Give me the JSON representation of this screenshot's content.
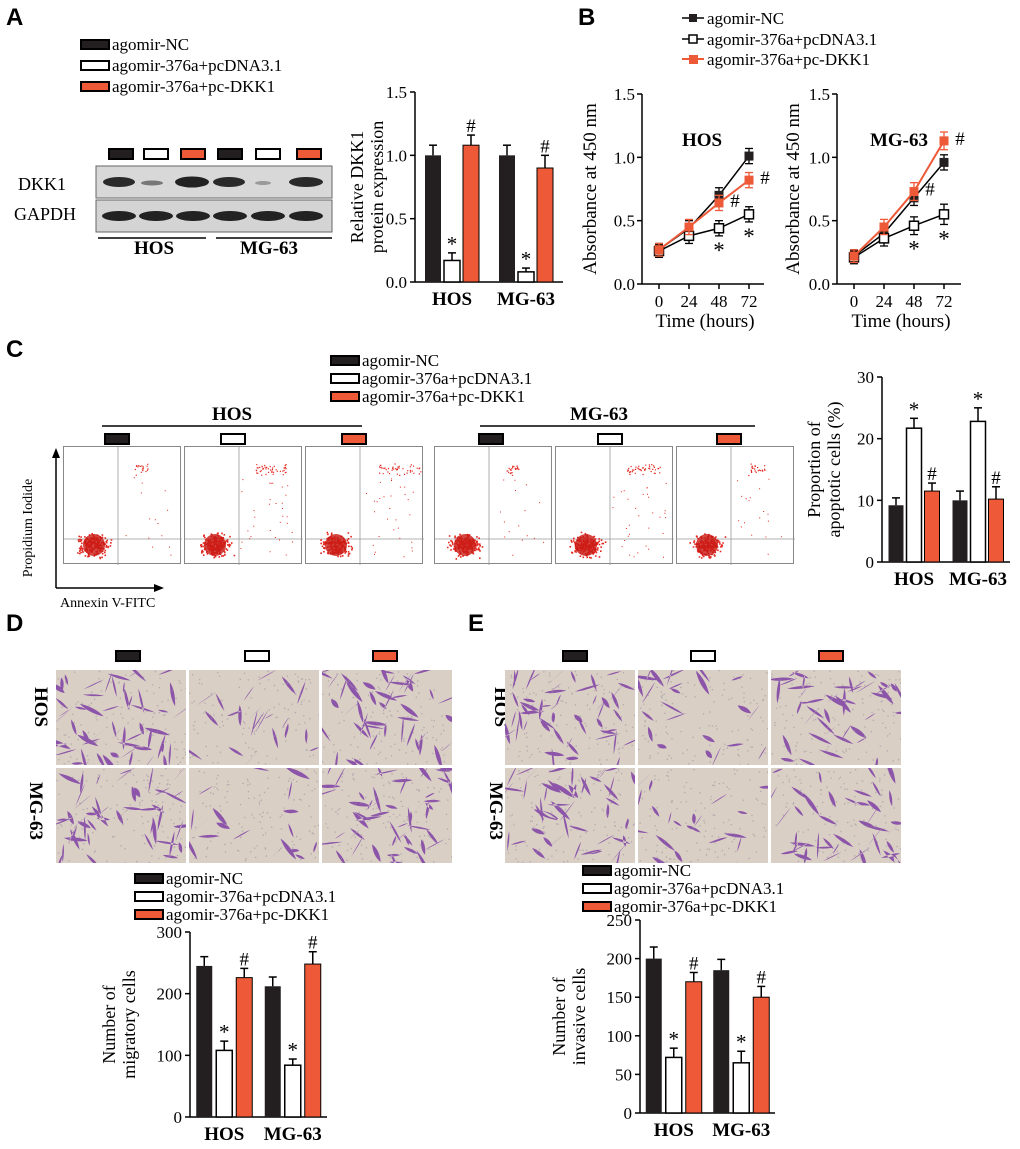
{
  "colors": {
    "nc": "#231f20",
    "pcdna": "#ffffff",
    "dkk1": "#ee5a38"
  },
  "panels": {
    "a": "A",
    "b": "B",
    "c": "C",
    "d": "D",
    "e": "E"
  },
  "legend": {
    "nc": "agomir-NC",
    "pcdna": "agomir-376a+pcDNA3.1",
    "dkk": "agomir-376a+pc-DKK1"
  },
  "lines": {
    "hos": "HOS",
    "mg63": "MG-63"
  },
  "western": {
    "dkk1": "DKK1",
    "gapdh": "GAPDH"
  },
  "flow": {
    "ylabel": "Propidium Iodide",
    "xlabel": "Annexin V-FITC"
  },
  "chart_data": [
    {
      "id": "A-bar",
      "type": "bar",
      "ylabel": "Relative DKK1 protein expression",
      "ylim": [
        0,
        1.5
      ],
      "yticks": [
        "0.0",
        "0.5",
        "1.0",
        "1.5"
      ],
      "categories": [
        "HOS",
        "MG-63"
      ],
      "series": [
        {
          "name": "agomir-NC",
          "values": [
            1.0,
            1.0
          ],
          "err": [
            0.08,
            0.08
          ]
        },
        {
          "name": "agomir-376a+pcDNA3.1",
          "values": [
            0.17,
            0.08
          ],
          "err": [
            0.06,
            0.03
          ]
        },
        {
          "name": "agomir-376a+pc-DKK1",
          "values": [
            1.08,
            0.9
          ],
          "err": [
            0.08,
            0.1
          ]
        }
      ],
      "annotations": [
        "*",
        "#",
        "*",
        "#"
      ]
    },
    {
      "id": "B-HOS",
      "type": "line",
      "title": "HOS",
      "ylabel": "Absorbance at 450 nm",
      "xlabel": "Time (hours)",
      "x": [
        0,
        24,
        48,
        72
      ],
      "ylim": [
        0,
        1.5
      ],
      "yticks": [
        "0.0",
        "0.5",
        "1.0",
        "1.5"
      ],
      "series": [
        {
          "name": "agomir-NC",
          "values": [
            0.27,
            0.44,
            0.7,
            1.01
          ],
          "err": [
            0.05,
            0.06,
            0.06,
            0.06
          ]
        },
        {
          "name": "agomir-376a+pcDNA3.1",
          "values": [
            0.26,
            0.38,
            0.44,
            0.55
          ],
          "err": [
            0.05,
            0.06,
            0.06,
            0.06
          ]
        },
        {
          "name": "agomir-376a+pc-DKK1",
          "values": [
            0.27,
            0.45,
            0.64,
            0.82
          ],
          "err": [
            0.05,
            0.06,
            0.06,
            0.06
          ]
        }
      ],
      "annotations": [
        "*",
        "#",
        "*",
        "#"
      ]
    },
    {
      "id": "B-MG63",
      "type": "line",
      "title": "MG-63",
      "ylabel": "Absorbance at 450 nm",
      "xlabel": "Time (hours)",
      "x": [
        0,
        24,
        48,
        72
      ],
      "ylim": [
        0,
        1.5
      ],
      "yticks": [
        "0.0",
        "0.5",
        "1.0",
        "1.5"
      ],
      "series": [
        {
          "name": "agomir-NC",
          "values": [
            0.22,
            0.4,
            0.68,
            0.96
          ],
          "err": [
            0.05,
            0.06,
            0.06,
            0.06
          ]
        },
        {
          "name": "agomir-376a+pcDNA3.1",
          "values": [
            0.21,
            0.36,
            0.46,
            0.55
          ],
          "err": [
            0.05,
            0.06,
            0.07,
            0.08
          ]
        },
        {
          "name": "agomir-376a+pc-DKK1",
          "values": [
            0.22,
            0.45,
            0.73,
            1.13
          ],
          "err": [
            0.05,
            0.06,
            0.07,
            0.07
          ]
        }
      ],
      "annotations": [
        "*",
        "#",
        "*",
        "#"
      ]
    },
    {
      "id": "C-bar",
      "type": "bar",
      "ylabel": "Proportion of apoptotic cells (%)",
      "ylim": [
        0,
        30
      ],
      "yticks": [
        "0",
        "10",
        "20",
        "30"
      ],
      "categories": [
        "HOS",
        "MG-63"
      ],
      "series": [
        {
          "name": "agomir-NC",
          "values": [
            9.2,
            10.0
          ],
          "err": [
            1.2,
            1.5
          ]
        },
        {
          "name": "agomir-376a+pcDNA3.1",
          "values": [
            21.7,
            22.8
          ],
          "err": [
            1.6,
            2.2
          ]
        },
        {
          "name": "agomir-376a+pc-DKK1",
          "values": [
            11.5,
            10.2
          ],
          "err": [
            1.3,
            2.0
          ]
        }
      ],
      "annotations": [
        "*",
        "#",
        "*",
        "#"
      ]
    },
    {
      "id": "D-bar",
      "type": "bar",
      "ylabel": "Number of migratory cells",
      "ylim": [
        0,
        300
      ],
      "yticks": [
        "0",
        "100",
        "200",
        "300"
      ],
      "categories": [
        "HOS",
        "MG-63"
      ],
      "series": [
        {
          "name": "agomir-NC",
          "values": [
            245,
            212
          ],
          "err": [
            15,
            15
          ]
        },
        {
          "name": "agomir-376a+pcDNA3.1",
          "values": [
            108,
            84
          ],
          "err": [
            15,
            10
          ]
        },
        {
          "name": "agomir-376a+pc-DKK1",
          "values": [
            226,
            248
          ],
          "err": [
            15,
            20
          ]
        }
      ],
      "annotations": [
        "*",
        "#",
        "*",
        "#"
      ]
    },
    {
      "id": "E-bar",
      "type": "bar",
      "ylabel": "Number of invasive cells",
      "ylim": [
        0,
        250
      ],
      "yticks": [
        "0",
        "50",
        "100",
        "150",
        "200",
        "250"
      ],
      "categories": [
        "HOS",
        "MG-63"
      ],
      "series": [
        {
          "name": "agomir-NC",
          "values": [
            200,
            185
          ],
          "err": [
            15,
            14
          ]
        },
        {
          "name": "agomir-376a+pcDNA3.1",
          "values": [
            72,
            65
          ],
          "err": [
            12,
            15
          ]
        },
        {
          "name": "agomir-376a+pc-DKK1",
          "values": [
            170,
            150
          ],
          "err": [
            12,
            14
          ]
        }
      ],
      "annotations": [
        "*",
        "#",
        "*",
        "#"
      ]
    }
  ]
}
